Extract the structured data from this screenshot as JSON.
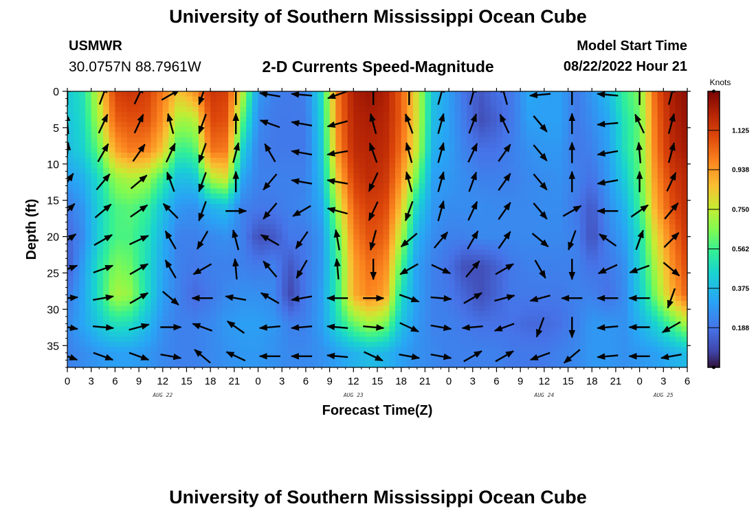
{
  "header": {
    "title": "University of Southern Mississippi Ocean Cube",
    "station": "USMWR",
    "coordinates": "30.0757N  88.7961W",
    "subtitle": "2-D Currents Speed-Magnitude",
    "model_start_label": "Model Start Time",
    "model_start_value": "08/22/2022 Hour 21"
  },
  "footer": {
    "title": "University of Southern Mississippi Ocean Cube"
  },
  "chart_data": {
    "type": "heatmap",
    "title": "2-D Currents Speed-Magnitude",
    "xlabel": "Forecast Time(Z)",
    "ylabel": "Depth (ft)",
    "x_unit": "forecast hours (Z), 0 = Aug 22 00Z",
    "xlim": [
      0,
      78
    ],
    "ylim": [
      0,
      38
    ],
    "y_inverted": true,
    "x_tick_labels": [
      "0",
      "3",
      "6",
      "9",
      "12",
      "15",
      "18",
      "21",
      "0",
      "3",
      "6",
      "9",
      "12",
      "15",
      "18",
      "21",
      "0",
      "3",
      "6",
      "9",
      "12",
      "15",
      "18",
      "21",
      "0",
      "3",
      "6"
    ],
    "y_ticks": [
      0,
      5,
      10,
      15,
      20,
      25,
      30,
      35
    ],
    "date_labels": [
      {
        "hour": 12,
        "label": "AUG 22"
      },
      {
        "hour": 36,
        "label": "AUG 23"
      },
      {
        "hour": 60,
        "label": "AUG 24"
      },
      {
        "hour": 75,
        "label": "AUG 25"
      }
    ],
    "colorbar": {
      "title": "Knots",
      "ticks": [
        "0.188",
        "0.375",
        "0.562",
        "0.750",
        "0.938",
        "1.125"
      ],
      "range": [
        0,
        1.31
      ]
    },
    "depth_rows": [
      0,
      4,
      8,
      12,
      16,
      20,
      24,
      28,
      32,
      36
    ],
    "speed_grid_hours": [
      0,
      2,
      4,
      6,
      8,
      10,
      12,
      14,
      16,
      18,
      20,
      22,
      24,
      26,
      28,
      30,
      32,
      34,
      36,
      38,
      40,
      42,
      44,
      46,
      48,
      50,
      52,
      54,
      56,
      58,
      60,
      62,
      64,
      66,
      68,
      70,
      72,
      74,
      76,
      78
    ],
    "speed_knots": [
      [
        0.42,
        0.5,
        0.78,
        1.12,
        1.15,
        1.12,
        1.0,
        0.85,
        0.95,
        1.15,
        1.12,
        0.75,
        0.28,
        0.22,
        0.2,
        0.22,
        0.48,
        1.0,
        1.22,
        1.25,
        1.22,
        1.05,
        0.78,
        0.4,
        0.3,
        0.18,
        0.12,
        0.18,
        0.2,
        0.32,
        0.3,
        0.3,
        0.2,
        0.28,
        0.38,
        0.55,
        0.65,
        1.05,
        1.22,
        1.28
      ],
      [
        0.4,
        0.48,
        0.72,
        1.05,
        1.08,
        1.08,
        0.95,
        0.7,
        0.72,
        1.1,
        1.08,
        0.6,
        0.25,
        0.2,
        0.2,
        0.2,
        0.45,
        0.98,
        1.2,
        1.22,
        1.2,
        1.05,
        0.78,
        0.38,
        0.3,
        0.2,
        0.1,
        0.14,
        0.2,
        0.3,
        0.3,
        0.3,
        0.2,
        0.25,
        0.32,
        0.5,
        0.62,
        1.02,
        1.2,
        1.26
      ],
      [
        0.38,
        0.45,
        0.62,
        0.92,
        1.0,
        0.98,
        0.85,
        0.55,
        0.58,
        1.02,
        1.0,
        0.45,
        0.22,
        0.2,
        0.2,
        0.2,
        0.42,
        0.95,
        1.18,
        1.2,
        1.18,
        1.02,
        0.75,
        0.35,
        0.3,
        0.22,
        0.18,
        0.18,
        0.22,
        0.26,
        0.28,
        0.28,
        0.2,
        0.22,
        0.3,
        0.48,
        0.62,
        1.0,
        1.18,
        1.24
      ],
      [
        0.3,
        0.35,
        0.48,
        0.68,
        0.72,
        0.7,
        0.55,
        0.38,
        0.4,
        0.72,
        0.78,
        0.32,
        0.22,
        0.22,
        0.22,
        0.22,
        0.38,
        0.85,
        1.12,
        1.18,
        1.15,
        0.95,
        0.62,
        0.3,
        0.28,
        0.25,
        0.22,
        0.22,
        0.22,
        0.24,
        0.25,
        0.26,
        0.22,
        0.18,
        0.28,
        0.42,
        0.6,
        0.95,
        1.12,
        1.2
      ],
      [
        0.2,
        0.28,
        0.45,
        0.58,
        0.6,
        0.55,
        0.4,
        0.28,
        0.26,
        0.35,
        0.38,
        0.22,
        0.2,
        0.2,
        0.22,
        0.24,
        0.32,
        0.72,
        1.05,
        1.12,
        1.1,
        0.85,
        0.45,
        0.28,
        0.25,
        0.25,
        0.25,
        0.24,
        0.24,
        0.24,
        0.25,
        0.25,
        0.2,
        0.12,
        0.25,
        0.35,
        0.55,
        0.9,
        1.08,
        1.18
      ],
      [
        0.15,
        0.25,
        0.45,
        0.58,
        0.58,
        0.5,
        0.35,
        0.22,
        0.22,
        0.24,
        0.26,
        0.22,
        0.1,
        0.12,
        0.2,
        0.2,
        0.28,
        0.6,
        0.98,
        1.08,
        1.05,
        0.72,
        0.35,
        0.25,
        0.22,
        0.22,
        0.24,
        0.24,
        0.24,
        0.24,
        0.24,
        0.24,
        0.22,
        0.1,
        0.22,
        0.3,
        0.48,
        0.8,
        1.0,
        1.15
      ],
      [
        0.12,
        0.3,
        0.5,
        0.65,
        0.62,
        0.48,
        0.32,
        0.22,
        0.2,
        0.22,
        0.22,
        0.22,
        0.2,
        0.22,
        0.12,
        0.2,
        0.28,
        0.55,
        0.92,
        1.02,
        0.98,
        0.58,
        0.3,
        0.22,
        0.18,
        0.1,
        0.1,
        0.14,
        0.2,
        0.22,
        0.22,
        0.22,
        0.22,
        0.18,
        0.2,
        0.25,
        0.45,
        0.72,
        0.95,
        1.1
      ],
      [
        0.2,
        0.32,
        0.5,
        0.72,
        0.68,
        0.48,
        0.3,
        0.22,
        0.16,
        0.2,
        0.24,
        0.26,
        0.26,
        0.24,
        0.08,
        0.2,
        0.3,
        0.55,
        0.9,
        0.98,
        0.92,
        0.48,
        0.3,
        0.22,
        0.2,
        0.15,
        0.1,
        0.15,
        0.2,
        0.2,
        0.2,
        0.2,
        0.22,
        0.22,
        0.18,
        0.24,
        0.42,
        0.65,
        0.88,
        1.05
      ],
      [
        0.24,
        0.32,
        0.42,
        0.5,
        0.48,
        0.38,
        0.26,
        0.22,
        0.22,
        0.24,
        0.28,
        0.3,
        0.3,
        0.28,
        0.22,
        0.22,
        0.3,
        0.48,
        0.62,
        0.7,
        0.65,
        0.4,
        0.28,
        0.22,
        0.22,
        0.2,
        0.18,
        0.18,
        0.18,
        0.16,
        0.16,
        0.18,
        0.22,
        0.28,
        0.28,
        0.26,
        0.35,
        0.45,
        0.58,
        0.72
      ],
      [
        0.22,
        0.25,
        0.28,
        0.3,
        0.3,
        0.28,
        0.24,
        0.22,
        0.22,
        0.24,
        0.26,
        0.28,
        0.28,
        0.26,
        0.24,
        0.24,
        0.26,
        0.3,
        0.35,
        0.38,
        0.36,
        0.3,
        0.26,
        0.24,
        0.22,
        0.22,
        0.22,
        0.22,
        0.2,
        0.2,
        0.2,
        0.22,
        0.24,
        0.28,
        0.28,
        0.26,
        0.28,
        0.3,
        0.34,
        0.38
      ]
    ],
    "vector_hours": [
      0,
      4.5,
      9,
      13,
      17,
      21.2,
      25.5,
      29.5,
      34,
      38.5,
      43,
      47,
      51,
      55,
      59.5,
      63.5,
      68,
      72,
      76
    ],
    "vector_depths": [
      0,
      4,
      8,
      12,
      16,
      20,
      24,
      28,
      32,
      36
    ],
    "vector_dirs_deg": [
      [
        0,
        20,
        25,
        60,
        200,
        0,
        280,
        275,
        250,
        0,
        0,
        15,
        15,
        345,
        265,
        0,
        275,
        0,
        15
      ],
      [
        -5,
        25,
        25,
        345,
        200,
        0,
        290,
        280,
        255,
        345,
        340,
        15,
        20,
        335,
        140,
        0,
        265,
        335,
        15
      ],
      [
        5,
        30,
        35,
        25,
        200,
        15,
        330,
        280,
        260,
        340,
        345,
        15,
        25,
        35,
        140,
        0,
        260,
        355,
        15
      ],
      [
        35,
        40,
        50,
        340,
        200,
        0,
        220,
        280,
        280,
        205,
        345,
        15,
        20,
        35,
        140,
        0,
        260,
        0,
        25
      ],
      [
        45,
        50,
        55,
        315,
        200,
        90,
        220,
        240,
        285,
        205,
        200,
        15,
        25,
        35,
        140,
        60,
        270,
        55,
        40
      ],
      [
        55,
        60,
        65,
        330,
        210,
        345,
        300,
        215,
        350,
        195,
        230,
        40,
        30,
        35,
        130,
        200,
        305,
        20,
        45
      ],
      [
        70,
        70,
        60,
        330,
        240,
        355,
        320,
        210,
        355,
        180,
        240,
        115,
        40,
        60,
        150,
        180,
        245,
        250,
        130
      ],
      [
        85,
        80,
        60,
        130,
        270,
        280,
        300,
        260,
        270,
        90,
        110,
        95,
        60,
        75,
        255,
        270,
        270,
        270,
        200
      ],
      [
        100,
        95,
        75,
        90,
        290,
        305,
        265,
        265,
        275,
        95,
        115,
        100,
        265,
        250,
        200,
        180,
        265,
        270,
        240
      ],
      [
        110,
        110,
        110,
        100,
        310,
        295,
        270,
        270,
        275,
        115,
        100,
        100,
        60,
        60,
        250,
        230,
        265,
        270,
        260
      ]
    ]
  }
}
